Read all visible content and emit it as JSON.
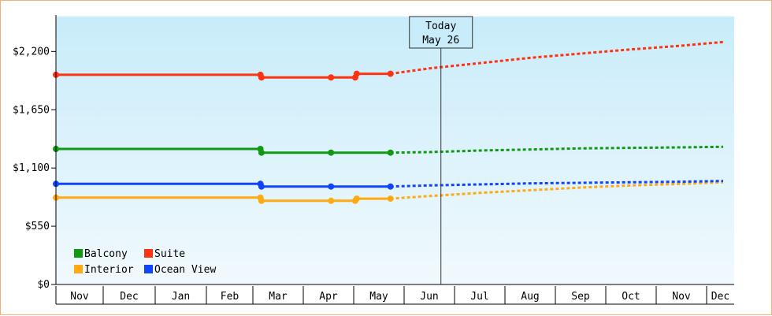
{
  "chart_data": {
    "type": "line",
    "title": "",
    "xlabel": "",
    "ylabel": "",
    "ylim": [
      0,
      2530
    ],
    "y_ticks": [
      {
        "value": 0,
        "label": "$0"
      },
      {
        "value": 550,
        "label": "$550"
      },
      {
        "value": 1100,
        "label": "$1,100"
      },
      {
        "value": 1650,
        "label": "$1,650"
      },
      {
        "value": 2200,
        "label": "$2,200"
      }
    ],
    "months": [
      "Nov",
      "Dec",
      "Jan",
      "Feb",
      "Mar",
      "Apr",
      "May",
      "Jun",
      "Jul",
      "Aug",
      "Sep",
      "Oct",
      "Nov",
      "Dec"
    ],
    "today": {
      "line1": "Today",
      "line2": "May 26",
      "x": 7.73
    },
    "grid": false,
    "legend_position": "bottom-left",
    "series": [
      {
        "name": "Balcony",
        "color": "#119911",
        "history": [
          [
            0,
            1280
          ],
          [
            4.15,
            1280
          ],
          [
            4.17,
            1245
          ],
          [
            5.55,
            1245
          ],
          [
            6.73,
            1245
          ]
        ],
        "markers": [
          [
            0,
            1280
          ],
          [
            4.15,
            1280
          ],
          [
            4.17,
            1245
          ],
          [
            5.55,
            1245
          ],
          [
            6.73,
            1245
          ]
        ],
        "forecast": [
          [
            6.73,
            1245
          ],
          [
            7.5,
            1250
          ],
          [
            8.5,
            1265
          ],
          [
            9.5,
            1275
          ],
          [
            10.5,
            1285
          ],
          [
            11.5,
            1290
          ],
          [
            12.5,
            1295
          ],
          [
            13.6,
            1300
          ]
        ]
      },
      {
        "name": "Suite",
        "color": "#ff3311",
        "history": [
          [
            0,
            1980
          ],
          [
            4.15,
            1980
          ],
          [
            4.17,
            1955
          ],
          [
            5.55,
            1955
          ],
          [
            6.03,
            1955
          ],
          [
            6.06,
            1990
          ],
          [
            6.73,
            1990
          ]
        ],
        "markers": [
          [
            0,
            1980
          ],
          [
            4.15,
            1980
          ],
          [
            4.17,
            1955
          ],
          [
            5.55,
            1955
          ],
          [
            6.03,
            1955
          ],
          [
            6.06,
            1990
          ],
          [
            6.73,
            1990
          ]
        ],
        "forecast": [
          [
            6.73,
            1990
          ],
          [
            7.5,
            2040
          ],
          [
            8.5,
            2090
          ],
          [
            9.5,
            2140
          ],
          [
            10.5,
            2180
          ],
          [
            11.5,
            2220
          ],
          [
            12.5,
            2255
          ],
          [
            13.6,
            2290
          ]
        ]
      },
      {
        "name": "Interior",
        "color": "#ffaa11",
        "history": [
          [
            0,
            820
          ],
          [
            4.15,
            820
          ],
          [
            4.17,
            790
          ],
          [
            5.55,
            790
          ],
          [
            6.03,
            790
          ],
          [
            6.06,
            810
          ],
          [
            6.73,
            810
          ]
        ],
        "markers": [
          [
            0,
            820
          ],
          [
            4.15,
            820
          ],
          [
            4.17,
            790
          ],
          [
            5.55,
            790
          ],
          [
            6.03,
            790
          ],
          [
            6.06,
            810
          ],
          [
            6.73,
            810
          ]
        ],
        "forecast": [
          [
            6.73,
            810
          ],
          [
            7.5,
            835
          ],
          [
            8.5,
            865
          ],
          [
            9.5,
            890
          ],
          [
            10.5,
            915
          ],
          [
            11.5,
            935
          ],
          [
            12.5,
            950
          ],
          [
            13.6,
            965
          ]
        ]
      },
      {
        "name": "Ocean View",
        "color": "#1144ff",
        "history": [
          [
            0,
            950
          ],
          [
            4.15,
            950
          ],
          [
            4.17,
            925
          ],
          [
            5.55,
            925
          ],
          [
            6.73,
            925
          ]
        ],
        "markers": [
          [
            0,
            950
          ],
          [
            4.15,
            950
          ],
          [
            4.17,
            925
          ],
          [
            5.55,
            925
          ],
          [
            6.73,
            925
          ]
        ],
        "forecast": [
          [
            6.73,
            925
          ],
          [
            7.5,
            935
          ],
          [
            8.5,
            945
          ],
          [
            9.5,
            955
          ],
          [
            10.5,
            960
          ],
          [
            11.5,
            965
          ],
          [
            12.5,
            970
          ],
          [
            13.6,
            978
          ]
        ]
      }
    ]
  }
}
